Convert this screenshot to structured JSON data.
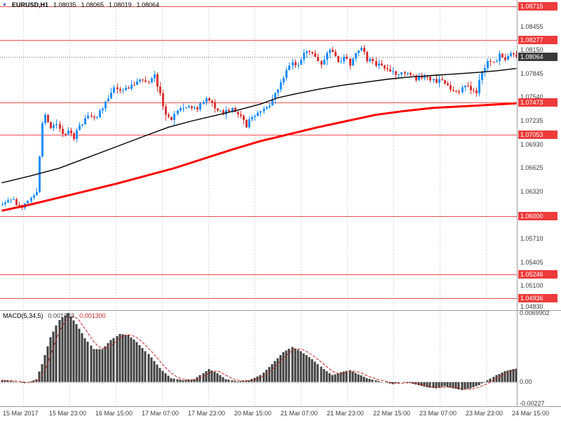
{
  "header": {
    "marker": "▼",
    "symbol": "EURUSD,H1",
    "open": "1.08035",
    "high": "1.08065",
    "low": "1.08019",
    "close": "1.08064"
  },
  "colors": {
    "bull": "#1e90ff",
    "bear": "#dd3333",
    "ma_fast": "#000000",
    "ma_slow": "#ff0000",
    "level_line": "#f05050",
    "level_box": "#ee3b3b",
    "current_box": "#3a3a3a",
    "current_line": "#666666",
    "grid": "#d8d8d8",
    "macd_hist": "#3f3f3f",
    "macd_signal": "#cc2222",
    "axis_text": "#3a3a3a"
  },
  "price_axis": {
    "ticks": [
      "1.08455",
      "1.08150",
      "1.07845",
      "1.07540",
      "1.07235",
      "1.06930",
      "1.06625",
      "1.06320",
      "1.06015",
      "1.05710",
      "1.05405",
      "1.05100",
      "1.04830"
    ],
    "levels": [
      "1.08715",
      "1.08277",
      "1.07473",
      "1.07053",
      "1.06000",
      "1.05246",
      "1.04936"
    ],
    "current": "1.08064"
  },
  "time_axis": {
    "labels": [
      "15 Mar 2017",
      "15 Mar 23:00",
      "16 Mar 15:00",
      "17 Mar 07:00",
      "17 Mar 23:00",
      "20 Mar 15:00",
      "21 Mar 07:00",
      "21 Mar 23:00",
      "22 Mar 15:00",
      "23 Mar 07:00",
      "23 Mar 23:00",
      "24 Mar 15:00"
    ]
  },
  "macd_panel": {
    "title": "MACD(5,34,5)",
    "value_main": "0.001333",
    "value_signal": "0.001300",
    "axis_max": "0.0069902",
    "axis_zero": "0.00",
    "axis_min": "-0.00227"
  },
  "chart_data": {
    "type": "candlestick",
    "symbol": "EURUSD",
    "timeframe": "H1",
    "title": "EURUSD,H1",
    "ohlc_current": {
      "open": 1.08035,
      "high": 1.08065,
      "low": 1.08019,
      "close": 1.08064
    },
    "visible_range": {
      "price_top": 1.08723,
      "price_bottom": 1.04793,
      "bars": 180
    },
    "horizontal_levels": [
      1.08715,
      1.08277,
      1.07473,
      1.07053,
      1.06,
      1.05246,
      1.04936
    ],
    "price_path_keypoints": [
      [
        0,
        1.0615
      ],
      [
        4,
        1.0622
      ],
      [
        8,
        1.061
      ],
      [
        11,
        1.0625
      ],
      [
        13,
        1.0628
      ],
      [
        14,
        1.068
      ],
      [
        15,
        1.0722
      ],
      [
        16,
        1.073
      ],
      [
        18,
        1.0712
      ],
      [
        20,
        1.0722
      ],
      [
        22,
        1.0705
      ],
      [
        24,
        1.0712
      ],
      [
        26,
        1.0702
      ],
      [
        28,
        1.0718
      ],
      [
        31,
        1.073
      ],
      [
        34,
        1.0726
      ],
      [
        36,
        1.0742
      ],
      [
        38,
        1.0755
      ],
      [
        40,
        1.0768
      ],
      [
        43,
        1.0762
      ],
      [
        46,
        1.077
      ],
      [
        49,
        1.0778
      ],
      [
        52,
        1.0772
      ],
      [
        54,
        1.078
      ],
      [
        56,
        1.076
      ],
      [
        58,
        1.0732
      ],
      [
        60,
        1.0722
      ],
      [
        63,
        1.074
      ],
      [
        66,
        1.0742
      ],
      [
        69,
        1.0738
      ],
      [
        72,
        1.0752
      ],
      [
        75,
        1.0742
      ],
      [
        78,
        1.0732
      ],
      [
        81,
        1.0738
      ],
      [
        84,
        1.0732
      ],
      [
        86,
        1.0718
      ],
      [
        88,
        1.0728
      ],
      [
        91,
        1.0738
      ],
      [
        94,
        1.0745
      ],
      [
        96,
        1.0758
      ],
      [
        98,
        1.0772
      ],
      [
        100,
        1.0788
      ],
      [
        102,
        1.08
      ],
      [
        104,
        1.0793
      ],
      [
        106,
        1.0808
      ],
      [
        108,
        1.0815
      ],
      [
        110,
        1.0808
      ],
      [
        112,
        1.0798
      ],
      [
        114,
        1.0812
      ],
      [
        116,
        1.0815
      ],
      [
        118,
        1.08
      ],
      [
        120,
        1.0804
      ],
      [
        122,
        1.0798
      ],
      [
        124,
        1.0808
      ],
      [
        126,
        1.0818
      ],
      [
        128,
        1.0804
      ],
      [
        130,
        1.08
      ],
      [
        133,
        1.0795
      ],
      [
        136,
        1.079
      ],
      [
        139,
        1.0782
      ],
      [
        142,
        1.0788
      ],
      [
        145,
        1.0778
      ],
      [
        148,
        1.0782
      ],
      [
        151,
        1.0774
      ],
      [
        154,
        1.0778
      ],
      [
        157,
        1.0765
      ],
      [
        160,
        1.0762
      ],
      [
        162,
        1.0772
      ],
      [
        164,
        1.0762
      ],
      [
        166,
        1.076
      ],
      [
        168,
        1.0785
      ],
      [
        170,
        1.0802
      ],
      [
        172,
        1.0798
      ],
      [
        174,
        1.0808
      ],
      [
        176,
        1.0805
      ],
      [
        178,
        1.081
      ],
      [
        179,
        1.08064
      ]
    ],
    "ma_fast_keypoints": [
      [
        0,
        1.0643
      ],
      [
        10,
        1.0652
      ],
      [
        20,
        1.0662
      ],
      [
        30,
        1.0676
      ],
      [
        40,
        1.069
      ],
      [
        50,
        1.0704
      ],
      [
        58,
        1.0715
      ],
      [
        66,
        1.0723
      ],
      [
        74,
        1.073
      ],
      [
        82,
        1.0737
      ],
      [
        90,
        1.0745
      ],
      [
        96,
        1.0753
      ],
      [
        102,
        1.0758
      ],
      [
        110,
        1.0764
      ],
      [
        118,
        1.0769
      ],
      [
        126,
        1.0773
      ],
      [
        134,
        1.0777
      ],
      [
        142,
        1.078
      ],
      [
        150,
        1.0782
      ],
      [
        158,
        1.0784
      ],
      [
        166,
        1.0786
      ],
      [
        172,
        1.0788
      ],
      [
        179,
        1.0791
      ]
    ],
    "ma_slow_keypoints": [
      [
        0,
        1.0607
      ],
      [
        10,
        1.0615
      ],
      [
        20,
        1.0624
      ],
      [
        30,
        1.0633
      ],
      [
        40,
        1.0642
      ],
      [
        50,
        1.0652
      ],
      [
        60,
        1.0662
      ],
      [
        70,
        1.0674
      ],
      [
        80,
        1.0686
      ],
      [
        90,
        1.0697
      ],
      [
        100,
        1.0706
      ],
      [
        110,
        1.0715
      ],
      [
        120,
        1.0723
      ],
      [
        130,
        1.0731
      ],
      [
        140,
        1.0736
      ],
      [
        150,
        1.074
      ],
      [
        160,
        1.0742
      ],
      [
        170,
        1.0744
      ],
      [
        179,
        1.0746
      ]
    ],
    "indicator": {
      "type": "macd_histogram",
      "params": "5,34,5",
      "current_main": 0.001333,
      "current_signal": 0.0013,
      "scale_top": 0.00705,
      "scale_bottom": -0.0024,
      "keypoints": [
        [
          0,
          0.0002
        ],
        [
          4,
          0.0001
        ],
        [
          8,
          -0.0001
        ],
        [
          12,
          0.0003
        ],
        [
          14,
          0.0018
        ],
        [
          17,
          0.0045
        ],
        [
          20,
          0.0062
        ],
        [
          23,
          0.0069
        ],
        [
          26,
          0.0058
        ],
        [
          29,
          0.0044
        ],
        [
          32,
          0.0033
        ],
        [
          35,
          0.0033
        ],
        [
          38,
          0.0042
        ],
        [
          41,
          0.0048
        ],
        [
          44,
          0.0047
        ],
        [
          47,
          0.004
        ],
        [
          51,
          0.0028
        ],
        [
          55,
          0.0014
        ],
        [
          59,
          0.0004
        ],
        [
          63,
          0.0002
        ],
        [
          67,
          0.0003
        ],
        [
          70,
          0.0009
        ],
        [
          72,
          0.0013
        ],
        [
          75,
          0.0009
        ],
        [
          78,
          0.0003
        ],
        [
          82,
          0.0001
        ],
        [
          86,
          0.0002
        ],
        [
          90,
          0.0007
        ],
        [
          94,
          0.0018
        ],
        [
          98,
          0.003
        ],
        [
          101,
          0.0035
        ],
        [
          104,
          0.0031
        ],
        [
          108,
          0.0023
        ],
        [
          112,
          0.0013
        ],
        [
          115,
          0.0007
        ],
        [
          118,
          0.001
        ],
        [
          121,
          0.0012
        ],
        [
          124,
          0.0008
        ],
        [
          127,
          0.0004
        ],
        [
          130,
          0.0002
        ],
        [
          133,
          0
        ],
        [
          136,
          -0.0002
        ],
        [
          139,
          0
        ],
        [
          142,
          -0.0001
        ],
        [
          145,
          -0.0003
        ],
        [
          148,
          -0.0005
        ],
        [
          151,
          -0.0006
        ],
        [
          154,
          -0.0004
        ],
        [
          157,
          -0.0006
        ],
        [
          160,
          -0.0008
        ],
        [
          163,
          -0.0006
        ],
        [
          166,
          -0.0003
        ],
        [
          169,
          0.0002
        ],
        [
          172,
          0.0007
        ],
        [
          175,
          0.0011
        ],
        [
          178,
          0.0013
        ],
        [
          179,
          0.001333
        ]
      ]
    }
  }
}
